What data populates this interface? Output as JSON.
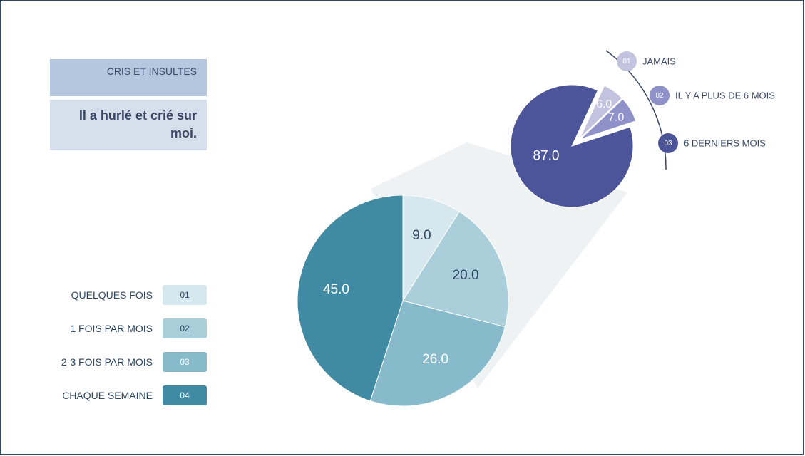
{
  "category": "CRIS ET INSULTES",
  "question": "Il a hurlé et crié sur moi.",
  "colors": {
    "frame": "#2f4a66",
    "main": [
      "#d6e8ed",
      "#aacfdb",
      "#87bbcc",
      "#408aa3"
    ],
    "small": [
      "#c3c3e0",
      "#8f91c9",
      "#4c5599"
    ]
  },
  "legend_left": [
    {
      "label": "QUELQUES FOIS",
      "badge": "01"
    },
    {
      "label": "1 FOIS PAR MOIS",
      "badge": "02"
    },
    {
      "label": "2-3 FOIS PAR MOIS",
      "badge": "03"
    },
    {
      "label": "CHAQUE SEMAINE",
      "badge": "04"
    }
  ],
  "legend_right": [
    {
      "label": "JAMAIS",
      "badge": "01"
    },
    {
      "label": "IL Y A PLUS DE 6 MOIS",
      "badge": "02"
    },
    {
      "label": "6 DERNIERS MOIS",
      "badge": "03"
    }
  ],
  "chart_data": [
    {
      "type": "pie",
      "categories": [
        "QUELQUES FOIS",
        "1 FOIS PAR MOIS",
        "2-3 FOIS PAR MOIS",
        "CHAQUE SEMAINE"
      ],
      "values": [
        9.0,
        20.0,
        26.0,
        45.0
      ],
      "labels": [
        "9.0",
        "20.0",
        "26.0",
        "45.0"
      ]
    },
    {
      "type": "pie",
      "categories": [
        "JAMAIS",
        "IL Y A PLUS DE 6 MOIS",
        "6 DERNIERS MOIS"
      ],
      "values": [
        6.0,
        7.0,
        87.0
      ],
      "labels": [
        "6.0",
        "7.0",
        "87.0"
      ]
    }
  ]
}
